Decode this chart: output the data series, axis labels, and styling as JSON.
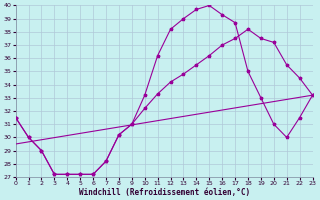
{
  "xlabel": "Windchill (Refroidissement éolien,°C)",
  "bg_color": "#c8f0f0",
  "line_color": "#990099",
  "grid_color": "#b0c8d8",
  "xlim": [
    0,
    23
  ],
  "ylim": [
    27,
    40
  ],
  "xticks": [
    0,
    1,
    2,
    3,
    4,
    5,
    6,
    7,
    8,
    9,
    10,
    11,
    12,
    13,
    14,
    15,
    16,
    17,
    18,
    19,
    20,
    21,
    22,
    23
  ],
  "yticks": [
    27,
    28,
    29,
    30,
    31,
    32,
    33,
    34,
    35,
    36,
    37,
    38,
    39,
    40
  ],
  "series1_x": [
    0,
    1,
    2,
    3,
    4,
    5,
    6,
    7,
    8,
    9,
    10,
    11,
    12,
    13,
    14,
    15,
    16,
    17,
    18,
    19,
    20,
    21,
    22,
    23
  ],
  "series1_y": [
    31.5,
    30.0,
    29.0,
    27.2,
    27.2,
    27.2,
    27.2,
    28.2,
    30.2,
    31.0,
    33.2,
    36.2,
    38.2,
    39.0,
    39.7,
    40.0,
    39.3,
    38.7,
    35.0,
    33.0,
    31.0,
    30.0,
    31.5,
    33.2
  ],
  "series2_x": [
    0,
    1,
    2,
    3,
    4,
    5,
    6,
    7,
    8,
    9,
    10,
    11,
    12,
    13,
    14,
    15,
    16,
    17,
    18,
    19,
    20,
    21,
    22,
    23
  ],
  "series2_y": [
    31.5,
    30.0,
    29.0,
    27.2,
    27.2,
    27.2,
    27.2,
    28.2,
    30.2,
    31.0,
    32.2,
    33.3,
    34.2,
    34.8,
    35.5,
    36.2,
    37.0,
    37.5,
    38.2,
    37.5,
    37.2,
    35.5,
    34.5,
    33.2
  ],
  "series3_x": [
    0,
    23
  ],
  "series3_y": [
    29.5,
    33.2
  ]
}
